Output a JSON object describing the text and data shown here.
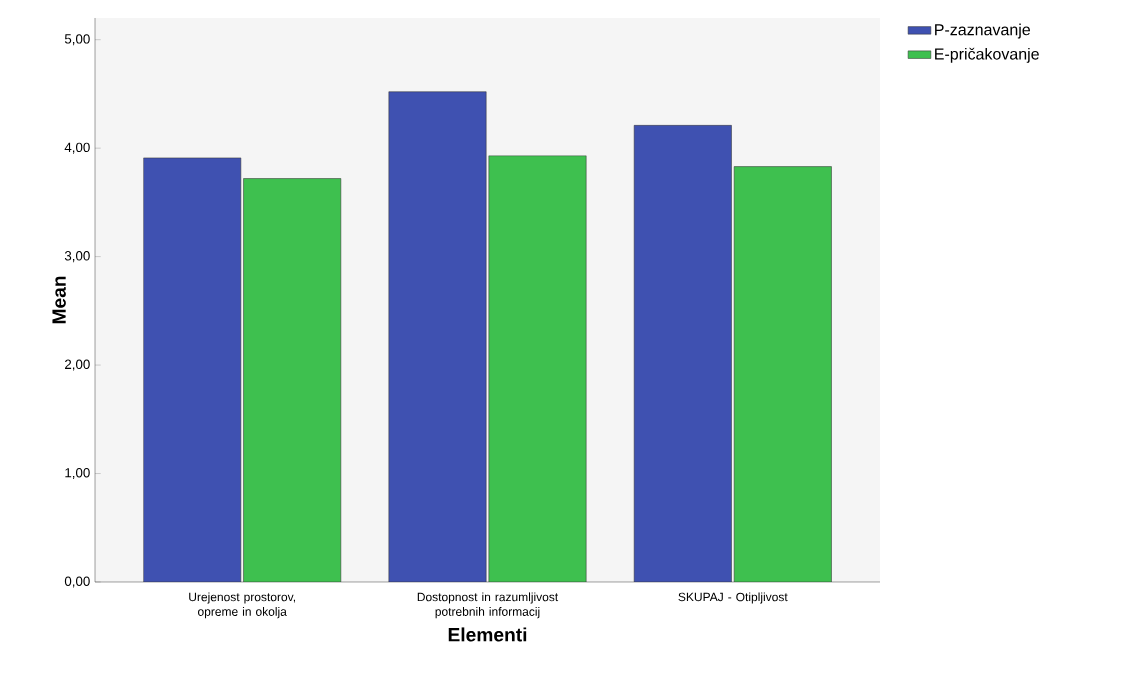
{
  "chart_data": {
    "type": "bar",
    "xlabel": "Elementi",
    "ylabel": "Mean",
    "categories": [
      "Urejenost prostorov, opreme in okolja",
      "Dostopnost in razumljivost potrebnih informacij",
      "SKUPAJ - Otipljivost"
    ],
    "series": [
      {
        "name": "P-zaznavanje",
        "color": "#3f51b1",
        "values": [
          3.91,
          4.52,
          4.21
        ]
      },
      {
        "name": "E-pričakovanje",
        "color": "#3ec04f",
        "values": [
          3.72,
          3.93,
          3.83
        ]
      }
    ],
    "ylim": [
      0,
      5.2
    ],
    "yticks": [
      {
        "value": 0,
        "label": "0,00"
      },
      {
        "value": 1,
        "label": "1,00"
      },
      {
        "value": 2,
        "label": "2,00"
      },
      {
        "value": 3,
        "label": "3,00"
      },
      {
        "value": 4,
        "label": "4,00"
      },
      {
        "value": 5,
        "label": "5,00"
      }
    ],
    "legend": "top right",
    "grid": false
  }
}
